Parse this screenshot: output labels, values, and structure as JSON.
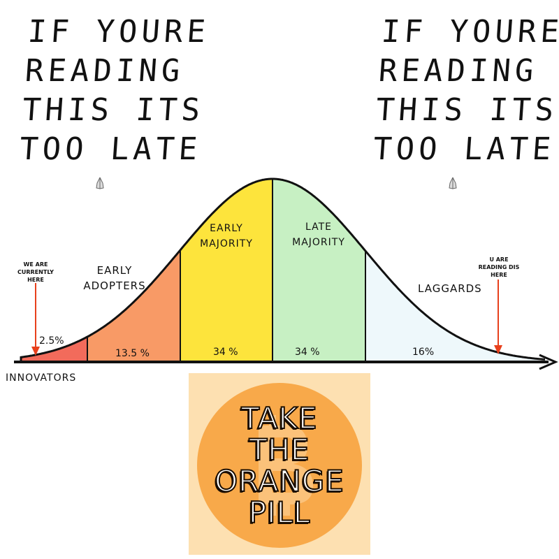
{
  "caption_left": [
    "IF YOURE",
    "READING",
    "THIS ITS",
    "TOO LATE"
  ],
  "caption_right": [
    "IF YOURE",
    "READING",
    "THIS ITS",
    "TOO LATE"
  ],
  "hands_icon": "praying-hands-icon",
  "curve": {
    "segments": [
      {
        "name": "innovators",
        "label": "INNOVATORS",
        "percent": "2.5%",
        "color": "#f26b5b"
      },
      {
        "name": "early-adopters",
        "label": "EARLY ADOPTERS",
        "percent": "13.5 %",
        "color": "#f89a66"
      },
      {
        "name": "early-majority",
        "label": "EARLY MAJORITY",
        "percent": "34 %",
        "color": "#fde43c"
      },
      {
        "name": "late-majority",
        "label": "LATE MAJORITY",
        "percent": "34 %",
        "color": "#c7f0c3"
      },
      {
        "name": "laggards",
        "label": "LAGGARDS",
        "percent": "16%",
        "color": "#eef8fb"
      }
    ],
    "annotation_left": [
      "WE ARE",
      "CURRENTLY",
      "HERE"
    ],
    "annotation_right": [
      "U ARE",
      "READING DIS",
      "HERE"
    ],
    "arrow_color": "#e8401c"
  },
  "pill": {
    "lines": [
      "TAKE",
      "THE",
      "ORANGE",
      "PILL"
    ],
    "symbol": "bitcoin-icon",
    "bg": "#fde0b1",
    "circle": "#f8a94a"
  }
}
